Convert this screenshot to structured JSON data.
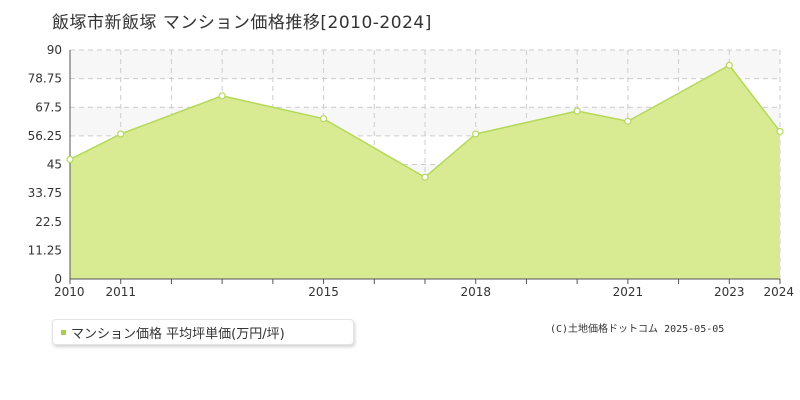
{
  "title": "飯塚市新飯塚 マンション価格推移[2010-2024]",
  "legend": {
    "label": "マンション価格 平均坪単価(万円/坪)"
  },
  "credit": "(C)土地価格ドットコム 2025-05-05",
  "colors": {
    "fill": "#d8eb92",
    "line": "#b5d85a",
    "marker_fill": "#ffffff",
    "grid": "#cccccc",
    "band": "#f7f7f7"
  },
  "chart_data": {
    "type": "area",
    "x": [
      2010,
      2011,
      2013,
      2015,
      2017,
      2018,
      2020,
      2021,
      2023,
      2024
    ],
    "series": [
      {
        "name": "マンション価格 平均坪単価(万円/坪)",
        "values": [
          47,
          57,
          72,
          63,
          40,
          57,
          66,
          62,
          84,
          58
        ]
      }
    ],
    "x_tick_labels": [
      "2010",
      "2011",
      "2015",
      "2018",
      "2021",
      "2023",
      "2024"
    ],
    "y_tick_labels": [
      "0",
      "11.25",
      "22.5",
      "33.75",
      "45",
      "56.25",
      "67.5",
      "78.75",
      "90"
    ],
    "xlim": [
      2010,
      2024
    ],
    "ylim": [
      0,
      90
    ],
    "grid": true
  }
}
